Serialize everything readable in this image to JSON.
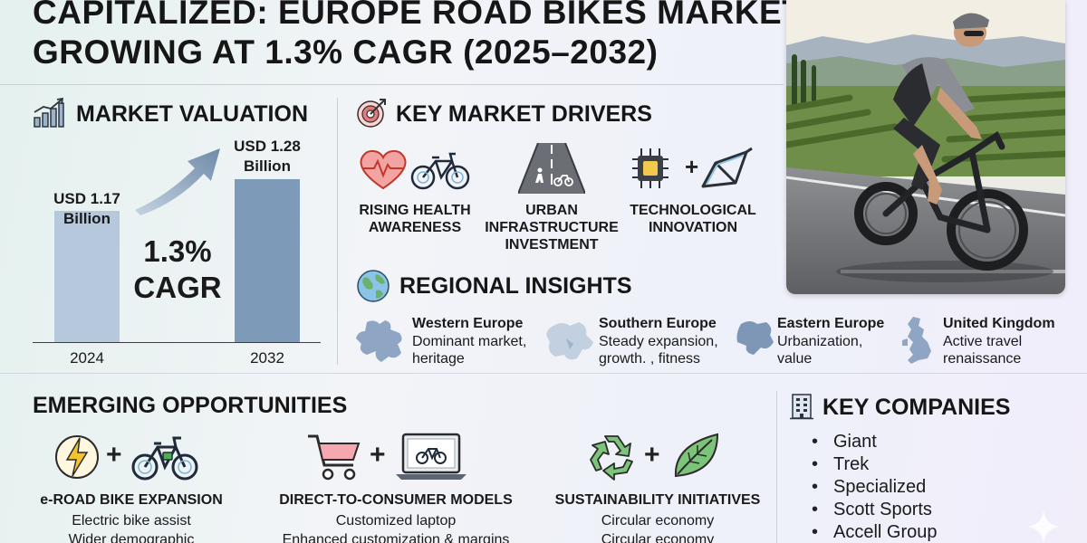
{
  "title": {
    "line1": "CAPITALIZED: EUROPE ROAD BIKES MARKET",
    "line2": "GROWING AT 1.3% CAGR (2025–2032)"
  },
  "valuation": {
    "heading": "MARKET VALUATION",
    "icon": "bar-chart-growth-icon",
    "cagr_line1": "1.3%",
    "cagr_line2": "CAGR",
    "bars": [
      {
        "year": "2024",
        "label_line1": "USD 1.17",
        "label_line2": "Billion",
        "value": 1.17
      },
      {
        "year": "2032",
        "label_line1": "USD 1.28",
        "label_line2": "Billion",
        "value": 1.28
      }
    ]
  },
  "drivers": {
    "heading": "KEY MARKET DRIVERS",
    "icon": "target-icon",
    "items": [
      {
        "line1": "RISING HEALTH",
        "line2": "AWARENESS",
        "icon": "heart-bicycle-icon"
      },
      {
        "line1": "URBAN",
        "line2": "INFRASTRUCTURE",
        "line3": "INVESTMENT",
        "icon": "bike-lane-road-icon"
      },
      {
        "line1": "TECHNOLOGICAL",
        "line2": "INNOVATION",
        "icon": "chip-frame-icon"
      }
    ]
  },
  "regional": {
    "heading": "REGIONAL INSIGHTS",
    "icon": "globe-icon",
    "items": [
      {
        "name": "Western Europe",
        "desc1": "Dominant market,",
        "desc2": "heritage"
      },
      {
        "name": "Southern Europe",
        "desc1": "Steady expansion,",
        "desc2": "growth. , fitness"
      },
      {
        "name": "Eastern Europe",
        "desc1": "Urbanization,",
        "desc2": "value"
      },
      {
        "name": "United Kingdom",
        "desc1": "Active travel",
        "desc2": "renaissance"
      }
    ]
  },
  "opportunities": {
    "heading": "EMERGING OPPORTUNITIES",
    "items": [
      {
        "label": "e-ROAD BIKE EXPANSION",
        "desc1": "Electric bike assist",
        "desc2": "Wider demographic",
        "icon": "lightning-ebike-icon"
      },
      {
        "label": "DIRECT-TO-CONSUMER MODELS",
        "desc1": "Customized laptop",
        "desc2": "Enhanced customization & margins",
        "icon": "cart-laptop-icon"
      },
      {
        "label": "SUSTAINABILITY INITIATIVES",
        "desc1": "Circular economy",
        "desc2": "Circular economy",
        "icon": "recycle-leaf-icon"
      }
    ]
  },
  "companies": {
    "heading": "KEY COMPANIES",
    "icon": "building-icon",
    "items": [
      "Giant",
      "Trek",
      "Specialized",
      "Scott Sports",
      "Accell Group"
    ]
  },
  "plus_sign": "+"
}
